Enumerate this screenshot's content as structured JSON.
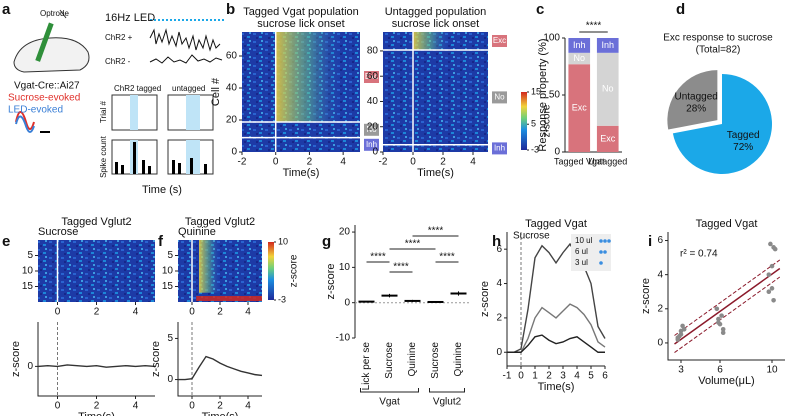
{
  "panel_letters": [
    "a",
    "b",
    "c",
    "d",
    "e",
    "f",
    "g",
    "h",
    "i"
  ],
  "panel_a": {
    "optrode": "Optrode",
    "mouse_line": "Vgat-Cre::Ai27",
    "led": "16Hz LED",
    "chr2_pos": "ChR2 +",
    "chr2_neg": "ChR2 -",
    "sucrose_evoked": "Sucrose-evoked",
    "led_evoked": "LED-evoked",
    "tagged": "ChR2 tagged",
    "untagged": "untagged",
    "trial_label": "Trial #",
    "count_label": "Spike count",
    "time_label": "Time (s)"
  },
  "chart_data": [
    {
      "type": "heatmap",
      "title": [
        "Tagged Vgat population",
        "sucrose lick onset"
      ],
      "xlabel": "Time(s)",
      "ylabel": "Cell #",
      "xlim": [
        -2,
        5
      ],
      "ylim": [
        0,
        75
      ],
      "xticks": [
        -2,
        0,
        2,
        4
      ],
      "yticks": [
        0,
        20,
        40,
        60
      ],
      "row_labels": [
        "Exc",
        "No",
        "Inh"
      ]
    },
    {
      "type": "heatmap",
      "title": [
        "Untagged population",
        "sucrose lick onset"
      ],
      "xlabel": "Time(s)",
      "xlim": [
        -2,
        5
      ],
      "ylim": [
        0,
        95
      ],
      "xticks": [
        -2,
        0,
        2,
        4
      ],
      "yticks": [
        0,
        20,
        40,
        60,
        80
      ],
      "row_labels": [
        "Exc",
        "No",
        "Inh"
      ],
      "colorbar": {
        "label": "z-score",
        "lim": [
          -3,
          15
        ],
        "ticks": [
          15,
          5,
          -3
        ]
      }
    },
    {
      "type": "stacked_bar",
      "ylabel": "Response property (%)",
      "categories": [
        "Tagged Vgat",
        "Untagged"
      ],
      "series": [
        {
          "name": "Exc",
          "color": "#d8737c",
          "values": [
            77,
            23
          ]
        },
        {
          "name": "No",
          "color": "#d4d4d4",
          "values": [
            10,
            64
          ]
        },
        {
          "name": "Inh",
          "color": "#6b6fd8",
          "values": [
            13,
            13
          ]
        }
      ],
      "ylim": [
        0,
        100
      ],
      "yticks": [
        0,
        50,
        100
      ],
      "annotation": "****"
    },
    {
      "type": "pie",
      "title": [
        "Exc response to sucrose",
        "(Total=82)"
      ],
      "categories": [
        "Tagged",
        "Untagged"
      ],
      "values": [
        72,
        28
      ],
      "value_labels": [
        "72%",
        "28%"
      ],
      "colors": [
        "#1ba8e8",
        "#8c8c8c"
      ]
    },
    {
      "type": "heatmap",
      "title": [
        "Tagged Vglut2"
      ],
      "subtitle": "Sucrose",
      "xlim": [
        -1,
        5
      ],
      "ylim": [
        0,
        20
      ],
      "xticks": [
        0,
        2,
        4
      ],
      "yticks": [
        5,
        10,
        15
      ],
      "y_inverted": true
    },
    {
      "type": "line",
      "ylabel": "z-score",
      "xlabel": "Time(s)",
      "x": [
        -1,
        -0.5,
        0,
        0.5,
        1,
        1.5,
        2,
        2.5,
        3,
        3.5,
        4,
        4.5,
        5
      ],
      "series": [
        {
          "color": "#333333",
          "values": [
            0,
            0.1,
            0,
            0.2,
            0.1,
            0,
            0.1,
            -0.1,
            0,
            0.1,
            0,
            0.1,
            0
          ]
        }
      ],
      "xlim": [
        -1,
        5
      ],
      "ylim": [
        -4,
        6
      ],
      "xticks": [
        0,
        2,
        4
      ],
      "yticks": [
        0
      ]
    },
    {
      "type": "heatmap",
      "title": [
        "Tagged Vglut2"
      ],
      "subtitle": "Quinine",
      "xlim": [
        -1,
        5
      ],
      "ylim": [
        0,
        20
      ],
      "xticks": [
        0,
        2,
        4
      ],
      "yticks": [
        5,
        10,
        15
      ],
      "y_inverted": true,
      "colorbar": {
        "label": "z-score",
        "lim": [
          -3,
          10
        ],
        "ticks": [
          10,
          -3
        ]
      }
    },
    {
      "type": "line",
      "ylabel": "z-score",
      "xlabel": "Time(s)",
      "x": [
        -1,
        -0.5,
        0,
        0.5,
        1,
        1.5,
        2,
        2.5,
        3,
        3.5,
        4,
        4.5,
        5
      ],
      "series": [
        {
          "color": "#333333",
          "values": [
            0,
            0,
            0.1,
            1.5,
            2.8,
            2.5,
            2,
            1.6,
            1.3,
            1,
            0.8,
            0.6,
            0.5
          ]
        }
      ],
      "xlim": [
        -1,
        5
      ],
      "ylim": [
        -2,
        7
      ],
      "xticks": [
        0,
        2,
        4
      ],
      "yticks": [
        0,
        5
      ]
    },
    {
      "type": "dot",
      "ylabel": "z-score",
      "categories": [
        "Lick per se",
        "Sucrose",
        "Quinine",
        "Sucrose",
        "Quinine"
      ],
      "groups": [
        "Vgat",
        "Vglut2"
      ],
      "values": [
        0.3,
        2,
        0.5,
        0.2,
        2.6
      ],
      "errors": [
        0.1,
        0.5,
        0.3,
        0.1,
        0.6
      ],
      "ylim": [
        -10,
        22
      ],
      "yticks": [
        -10,
        0,
        10,
        20
      ],
      "significance": [
        "****",
        "****",
        "****",
        "****",
        "****"
      ]
    },
    {
      "type": "line",
      "title": [
        "Tagged Vgat"
      ],
      "annotation": "Sucrose",
      "xlabel": "Time(s)",
      "ylabel": "z-score",
      "x": [
        -1,
        -0.5,
        0,
        0.5,
        1,
        1.5,
        2,
        2.5,
        3,
        3.5,
        4,
        4.5,
        5,
        5.5,
        6
      ],
      "series": [
        {
          "name": "10 ul",
          "color": "#444444",
          "values": [
            0,
            0,
            0.2,
            2.5,
            5.5,
            6.2,
            5.8,
            5.2,
            5.8,
            6.3,
            5.6,
            5,
            4,
            1.5,
            0.8
          ]
        },
        {
          "name": "6 ul",
          "color": "#777777",
          "values": [
            0,
            0,
            0,
            0.8,
            2,
            2.6,
            2.3,
            2,
            2.4,
            2.8,
            2.6,
            2.2,
            1.6,
            0.6,
            0.3
          ]
        },
        {
          "name": "3 ul",
          "color": "#222222",
          "values": [
            0,
            0,
            0,
            0.4,
            0.9,
            1,
            0.7,
            0.5,
            0.6,
            0.8,
            0.9,
            0.6,
            0.3,
            0,
            0
          ]
        }
      ],
      "xlim": [
        -1,
        6
      ],
      "ylim": [
        -0.8,
        7
      ],
      "xticks": [
        -1,
        0,
        1,
        2,
        3,
        4,
        5,
        6
      ],
      "yticks": [
        0,
        2,
        4,
        6
      ],
      "legend": "upper right"
    },
    {
      "type": "scatter",
      "title": [
        "Tagged Vgat"
      ],
      "xlabel": "Volume(μL)",
      "ylabel": "z-score",
      "x": [
        3,
        3,
        3,
        3,
        3,
        3,
        3,
        6,
        6,
        6,
        6,
        6,
        6,
        6,
        10,
        10,
        10,
        10,
        10,
        10,
        10,
        10
      ],
      "values": [
        0.2,
        0.5,
        0.8,
        0.4,
        1.0,
        0.3,
        0.7,
        0.8,
        1.2,
        1.6,
        2.0,
        1.1,
        0.6,
        1.4,
        2.5,
        3.0,
        4.5,
        5.5,
        5.8,
        5.6,
        4.0,
        3.2
      ],
      "color": "#8a8a8a",
      "fit_color": "#8b1a2b",
      "xlim": [
        2,
        11
      ],
      "ylim": [
        -1,
        6.5
      ],
      "xticks": [
        3,
        6,
        10
      ],
      "yticks": [
        0,
        2,
        4,
        6
      ],
      "annotation": "r² = 0.74"
    }
  ]
}
